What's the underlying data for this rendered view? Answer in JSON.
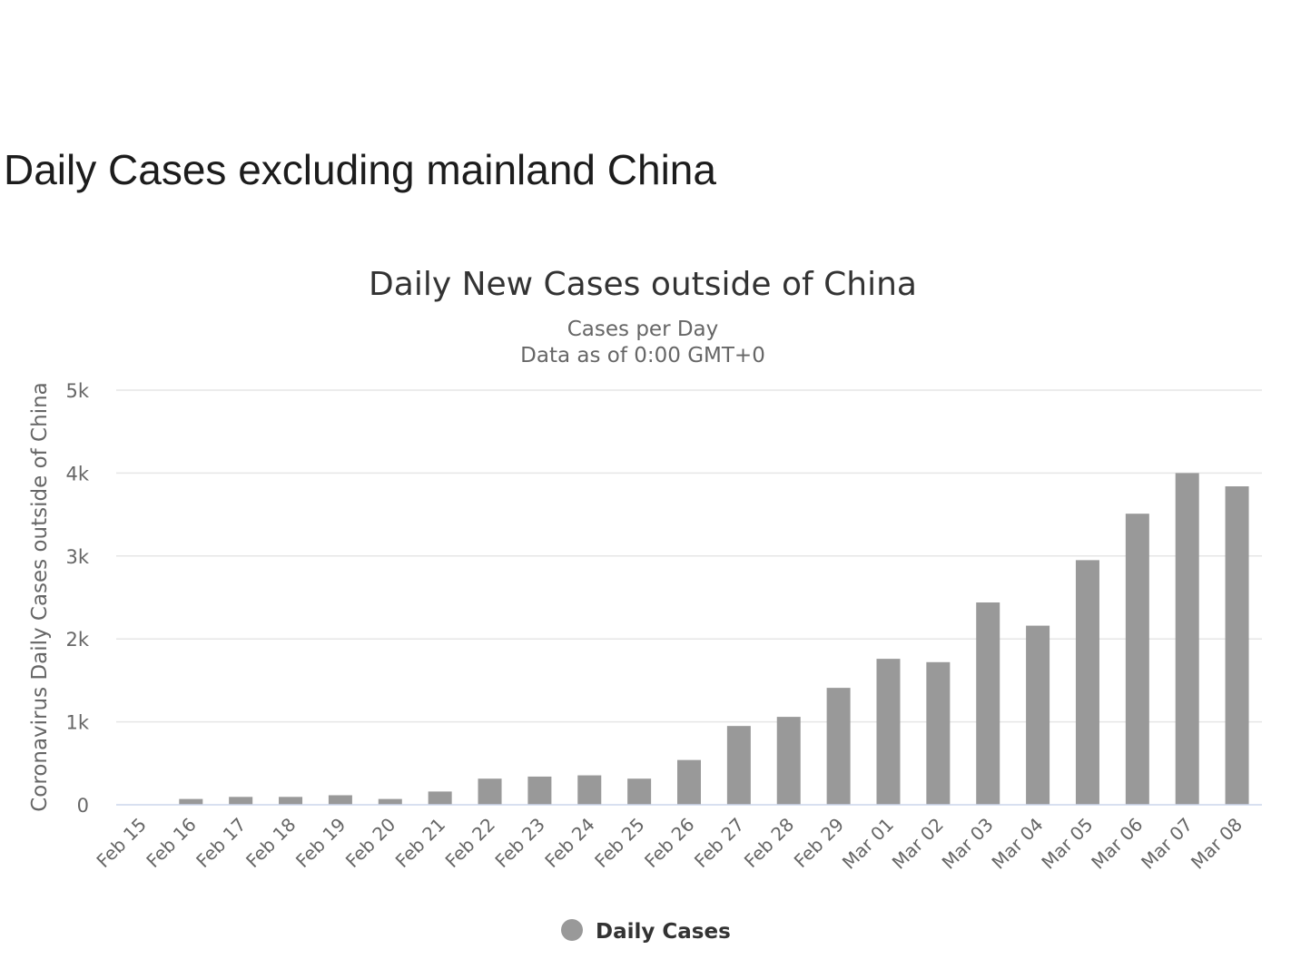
{
  "page": {
    "heading": "Daily Cases excluding mainland China"
  },
  "chart_data": {
    "type": "bar",
    "title": "Daily New Cases outside of China",
    "subtitle_lines": [
      "Cases per Day",
      "Data as of 0:00 GMT+0"
    ],
    "xlabel": "",
    "ylabel": "Coronavirus Daily Cases outside of China",
    "ylim": [
      0,
      5000
    ],
    "yticks": [
      0,
      1000,
      2000,
      3000,
      4000,
      5000
    ],
    "ytick_labels": [
      "0",
      "1k",
      "2k",
      "3k",
      "4k",
      "5k"
    ],
    "grid": true,
    "legend_position": "bottom-center",
    "categories": [
      "Feb 15",
      "Feb 16",
      "Feb 17",
      "Feb 18",
      "Feb 19",
      "Feb 20",
      "Feb 21",
      "Feb 22",
      "Feb 23",
      "Feb 24",
      "Feb 25",
      "Feb 26",
      "Feb 27",
      "Feb 28",
      "Feb 29",
      "Mar 01",
      "Mar 02",
      "Mar 03",
      "Mar 04",
      "Mar 05",
      "Mar 06",
      "Mar 07",
      "Mar 08"
    ],
    "series": [
      {
        "name": "Daily Cases",
        "color": "#999999",
        "values": [
          0,
          70,
          95,
          95,
          115,
          70,
          160,
          315,
          340,
          355,
          315,
          540,
          950,
          1060,
          1410,
          1760,
          1720,
          2440,
          2160,
          2950,
          3510,
          4000,
          3840
        ]
      }
    ]
  }
}
